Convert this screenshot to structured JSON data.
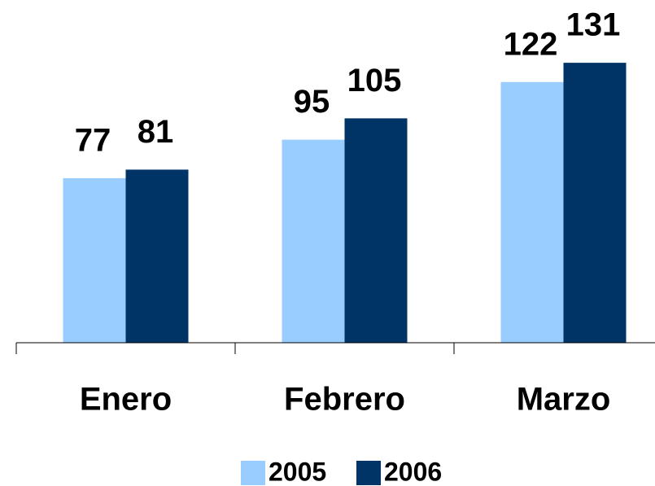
{
  "chart_data": {
    "type": "bar",
    "categories": [
      "Enero",
      "Febrero",
      "Marzo"
    ],
    "series": [
      {
        "name": "2005",
        "color": "#99ccff",
        "values": [
          77,
          95,
          122
        ]
      },
      {
        "name": "2006",
        "color": "#003366",
        "values": [
          81,
          105,
          131
        ]
      }
    ],
    "ylim": [
      0,
      160
    ],
    "legend": "bottom"
  }
}
